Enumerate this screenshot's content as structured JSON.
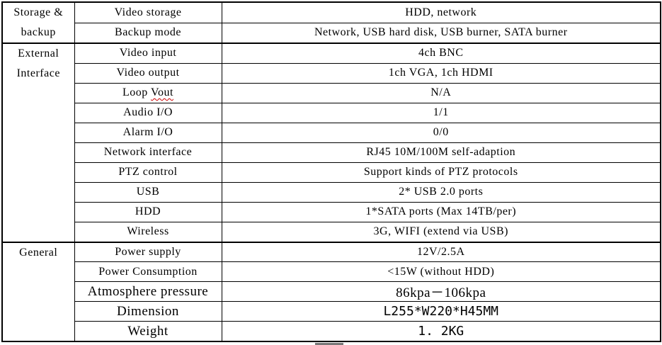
{
  "colors": {
    "border": "#000000",
    "text": "#000000",
    "background": "#ffffff",
    "spellcheck_underline": "#cc0000",
    "resize_handle": "#777777"
  },
  "table": {
    "categories": [
      {
        "line1": "Storage &",
        "line2": "backup",
        "rowspan": 2
      },
      {
        "line1": "External",
        "line2": "Interface",
        "rowspan": 10
      },
      {
        "line1": "General",
        "line2": "",
        "rowspan": 5
      }
    ],
    "rows": [
      {
        "name": "Video storage",
        "value": "HDD, network"
      },
      {
        "name": "Backup mode",
        "value": "Network, USB hard disk, USB burner, SATA burner"
      },
      {
        "name": "Video input",
        "value": "4ch BNC"
      },
      {
        "name": "Video output",
        "value": "1ch VGA, 1ch HDMI"
      },
      {
        "name": "Loop Vout",
        "name_prefix": "Loop ",
        "name_word": "Vout",
        "value": "N/A"
      },
      {
        "name": "Audio I/O",
        "value": "1/1"
      },
      {
        "name": "Alarm I/O",
        "value": "0/0"
      },
      {
        "name": "Network interface",
        "value": "RJ45 10M/100M self-adaption"
      },
      {
        "name": "PTZ control",
        "value": "Support kinds of PTZ protocols"
      },
      {
        "name": "USB",
        "value": "2* USB 2.0 ports"
      },
      {
        "name": "HDD",
        "value": "1*SATA ports (Max 14TB/per)"
      },
      {
        "name": "Wireless",
        "value": "3G, WIFI (extend via USB)"
      },
      {
        "name": "Power supply",
        "value": "12V/2.5A"
      },
      {
        "name": "Power Consumption",
        "value": "<15W (without HDD)"
      },
      {
        "name": "Atmosphere pressure",
        "value": "86kpa－106kpa"
      },
      {
        "name": "Dimension",
        "value": "L255*W220*H45MM"
      },
      {
        "name": "Weight",
        "value": "1. 2KG"
      }
    ]
  }
}
